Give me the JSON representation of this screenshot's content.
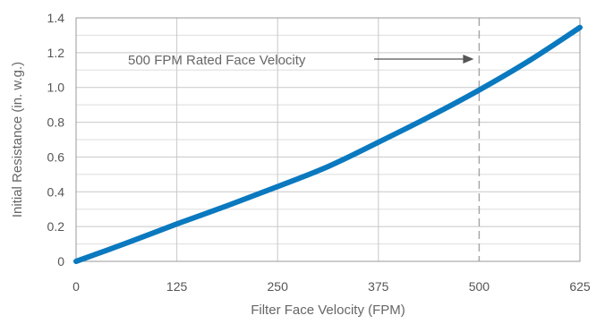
{
  "chart_data": {
    "type": "line",
    "title": "",
    "xlabel": "Filter Face Velocity (FPM)",
    "ylabel": "Initial Resistance (in. w.g.)",
    "xlim": [
      0,
      625
    ],
    "ylim": [
      0,
      1.4
    ],
    "x_ticks": [
      0,
      125,
      250,
      375,
      500,
      625
    ],
    "x_tick_labels": [
      "0",
      "125",
      "250",
      "375",
      "500",
      "625"
    ],
    "y_ticks": [
      0,
      0.2,
      0.4,
      0.6,
      0.8,
      1.0,
      1.2,
      1.4
    ],
    "y_tick_labels": [
      "0",
      "0.2",
      "0.4",
      "0.6",
      "0.8",
      "1.0",
      "1.2",
      "1.4"
    ],
    "grid": true,
    "series": [
      {
        "name": "",
        "color": "#0a79bf",
        "x": [
          0,
          62.5,
          125,
          187.5,
          250,
          312.5,
          375,
          437.5,
          500,
          562.5,
          625
        ],
        "y": [
          0,
          0.105,
          0.215,
          0.32,
          0.43,
          0.545,
          0.685,
          0.83,
          0.985,
          1.155,
          1.345
        ]
      }
    ],
    "reference_line": {
      "x": 500,
      "style": "dashed",
      "color": "#a8a8a8"
    },
    "annotation": {
      "text": "500 FPM Rated Face Velocity",
      "arrow_from_x": 462,
      "arrow_to_x": 500,
      "y": 1.18
    }
  }
}
